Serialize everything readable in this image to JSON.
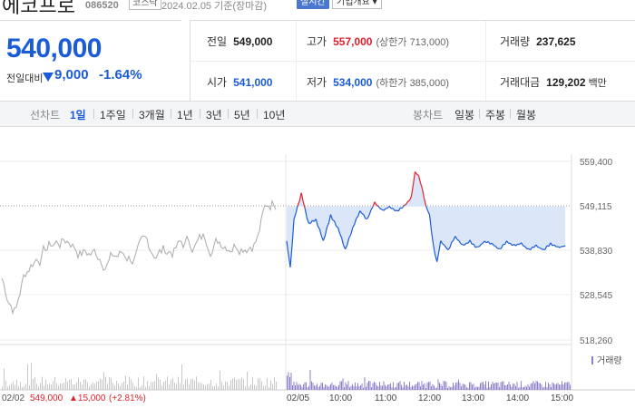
{
  "header": {
    "stock_name": "에코프로",
    "stock_code": "086520",
    "market": "코스닥",
    "date_text": "2024.02.05  기준(장마감)",
    "realtime_label": "실시간",
    "overview_label": "기업개요 ▾"
  },
  "price": {
    "current": "540,000",
    "change_label": "전일대비",
    "change_value": "9,000",
    "change_percent": "-1.64%",
    "direction": "down"
  },
  "info": {
    "prev_close_label": "전일",
    "prev_close": "549,000",
    "high_label": "고가",
    "high": "557,000",
    "upper_limit": "(상한가 713,000)",
    "volume_label": "거래량",
    "volume": "237,625",
    "open_label": "시가",
    "open": "541,000",
    "low_label": "저가",
    "low": "534,000",
    "lower_limit": "(하한가 385,000)",
    "amount_label": "거래대금",
    "amount": "129,202",
    "amount_unit": "백만"
  },
  "toolbar": {
    "line_chart_label": "선차트",
    "periods": [
      "1일",
      "1주일",
      "3개월",
      "1년",
      "3년",
      "5년",
      "10년"
    ],
    "active_period": "1일",
    "candle_chart_label": "봉차트",
    "candles": [
      "일봉",
      "주봉",
      "월봉"
    ]
  },
  "chart_data": {
    "type": "line",
    "yticks": [
      "559,400",
      "549,115",
      "538,830",
      "528,545",
      "518,260"
    ],
    "ylim": [
      518260,
      559400
    ],
    "x_labels": [
      "02/05",
      "10:00",
      "11:00",
      "12:00",
      "13:00",
      "14:00",
      "15:00"
    ],
    "volume_label": "거래량",
    "prev_day_footer": {
      "date": "02/02",
      "close": "549,000",
      "change": "▲15,000",
      "change_pct": "(+2.81%)"
    },
    "reference_price": 549000,
    "series": [
      {
        "x": [
          "09:00",
          "09:05",
          "09:10",
          "09:20",
          "09:30",
          "09:40",
          "09:50",
          "10:00",
          "10:10",
          "10:20",
          "10:30",
          "10:40",
          "10:50",
          "11:00",
          "11:10",
          "11:20",
          "11:30",
          "11:40",
          "11:50",
          "11:55",
          "12:00",
          "12:05",
          "12:10",
          "12:15",
          "12:20",
          "12:25",
          "12:30",
          "12:40",
          "12:50",
          "13:00",
          "13:10",
          "13:20",
          "13:30",
          "13:40",
          "13:50",
          "14:00",
          "14:10",
          "14:20",
          "14:30",
          "14:40",
          "14:50",
          "15:00",
          "15:10",
          "15:20"
        ],
        "values": [
          541000,
          535000,
          546000,
          552000,
          545000,
          546000,
          541000,
          547000,
          544000,
          539000,
          544000,
          548000,
          546000,
          550000,
          548000,
          549000,
          548000,
          549000,
          551000,
          557000,
          556000,
          553000,
          549000,
          547000,
          540000,
          536000,
          541000,
          539000,
          542000,
          540000,
          541000,
          539500,
          541000,
          540500,
          539000,
          541000,
          540000,
          540500,
          539000,
          540000,
          539000,
          540500,
          539500,
          540000
        ]
      }
    ],
    "colors": {
      "down": "#1a5bd8",
      "up": "#e0222c",
      "fill": "#dbe6f8",
      "prev_day": "#aaaaaa",
      "volume": "#9080c8"
    }
  }
}
